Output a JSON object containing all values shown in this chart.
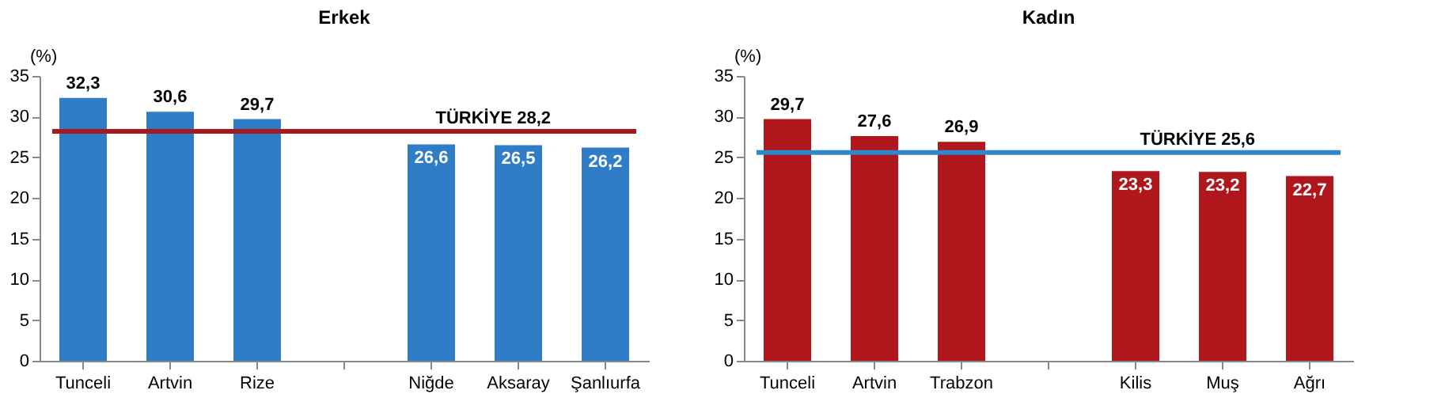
{
  "chart_data": [
    {
      "type": "bar",
      "title": "Erkek",
      "ylabel": "(%)",
      "categories": [
        "Tunceli",
        "Artvin",
        "Rize",
        null,
        "Niğde",
        "Aksaray",
        "Şanlıurfa"
      ],
      "values": [
        32.3,
        30.6,
        29.7,
        null,
        26.6,
        26.5,
        26.2
      ],
      "color": "#2e7dc6",
      "value_labels": [
        "32,3",
        "30,6",
        "29,7",
        null,
        "26,6",
        "26,5",
        "26,2"
      ],
      "ylim": [
        0,
        35
      ],
      "yticks": [
        0,
        5,
        10,
        15,
        20,
        25,
        30,
        35
      ],
      "grid": false,
      "ref_lines": [
        {
          "axis": "y",
          "value": 28.2,
          "label": "TÜRKİYE 28,2",
          "color": "#a31b1f"
        }
      ]
    },
    {
      "type": "bar",
      "title": "Kadın",
      "ylabel": "(%)",
      "categories": [
        "Tunceli",
        "Artvin",
        "Trabzon",
        null,
        "Kilis",
        "Muş",
        "Ağrı"
      ],
      "values": [
        29.7,
        27.6,
        26.9,
        null,
        23.3,
        23.2,
        22.7
      ],
      "color": "#b0171c",
      "value_labels": [
        "29,7",
        "27,6",
        "26,9",
        null,
        "23,3",
        "23,2",
        "22,7"
      ],
      "ylim": [
        0,
        35
      ],
      "yticks": [
        0,
        5,
        10,
        15,
        20,
        25,
        30,
        35
      ],
      "grid": false,
      "ref_lines": [
        {
          "axis": "y",
          "value": 25.6,
          "label": "TÜRKİYE 25,6",
          "color": "#2f86c8"
        }
      ]
    }
  ]
}
